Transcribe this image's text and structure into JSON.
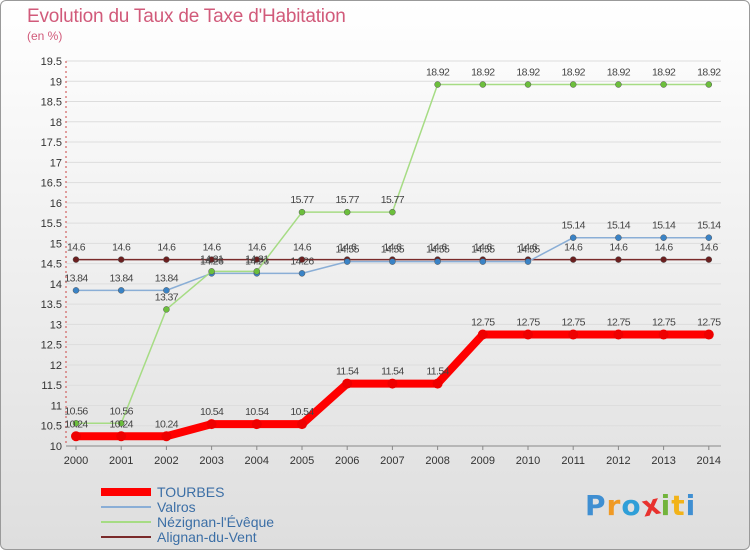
{
  "title": "Evolution du Taux de Taxe d'Habitation",
  "subtitle": "(en %)",
  "colors": {
    "title": "#d15a7a",
    "legend_text": "#3c6fa6",
    "grid": "#dddddd"
  },
  "logo": {
    "text": "Proxiti",
    "colors": [
      "#3f8fd2",
      "#f09a24",
      "#2f9fd8",
      "#e8322e",
      "#72b43c",
      "#f2b319",
      "#3f8fd2"
    ]
  },
  "chart_data": {
    "type": "line",
    "title": "Evolution du Taux de Taxe d'Habitation",
    "subtitle": "(en %)",
    "xlabel": "",
    "ylabel": "",
    "ylim": [
      10,
      19.5
    ],
    "y_ticks": [
      "10",
      "10.5",
      "11",
      "11.5",
      "12",
      "12.5",
      "13",
      "13.5",
      "14",
      "14.5",
      "15",
      "15.5",
      "16",
      "16.5",
      "17",
      "17.5",
      "18",
      "18.5",
      "19",
      "19.5"
    ],
    "x": [
      "2000",
      "2001",
      "2002",
      "2003",
      "2004",
      "2005",
      "2006",
      "2007",
      "2008",
      "2009",
      "2010",
      "2011",
      "2012",
      "2013",
      "2014"
    ],
    "grid": true,
    "legend_position": "bottom-left",
    "series": [
      {
        "name": "Alignan-du-Vent",
        "color": "#7a2a2a",
        "point": "#6b1f1f",
        "stroke": 1.5,
        "values": [
          14.6,
          14.6,
          14.6,
          14.6,
          14.6,
          14.6,
          14.6,
          14.6,
          14.6,
          14.6,
          14.6,
          14.6,
          14.6,
          14.6,
          14.6
        ],
        "labels": [
          "14.6",
          "14.6",
          "14.6",
          "14.6",
          "14.6",
          "14.6",
          "14.6",
          "14.6",
          "14.6",
          "14.6",
          "14.6",
          "14.6",
          "14.6",
          "14.6",
          "14.6"
        ]
      },
      {
        "name": "Valros",
        "color": "#8aaed6",
        "point": "#3a83c6",
        "stroke": 1.5,
        "values": [
          13.84,
          13.84,
          13.84,
          14.26,
          14.26,
          14.26,
          14.55,
          14.55,
          14.55,
          14.55,
          14.55,
          15.14,
          15.14,
          15.14,
          15.14
        ],
        "labels": [
          "13.84",
          "13.84",
          "13.84",
          "14.26",
          "14.26",
          "14.26",
          "14.55",
          "14.55",
          "14.55",
          "14.55",
          "14.55",
          "15.14",
          "15.14",
          "15.14",
          "15.14"
        ]
      },
      {
        "name": "Nézignan-l'Évêque",
        "color": "#a6dc84",
        "point": "#6cbf3c",
        "stroke": 1.5,
        "values": [
          10.56,
          10.56,
          13.37,
          14.31,
          14.31,
          15.77,
          15.77,
          15.77,
          18.92,
          18.92,
          18.92,
          18.92,
          18.92,
          18.92,
          18.92
        ],
        "labels": [
          "10.56",
          "10.56",
          "13.37",
          "14.31",
          "14.31",
          "15.77",
          "15.77",
          "15.77",
          "18.92",
          "18.92",
          "18.92",
          "18.92",
          "18.92",
          "18.92",
          "18.92"
        ]
      },
      {
        "name": "TOURBES",
        "color": "#ff0000",
        "point": "#ee0000",
        "stroke": 8,
        "values": [
          10.24,
          10.24,
          10.24,
          10.54,
          10.54,
          10.54,
          11.54,
          11.54,
          11.54,
          12.75,
          12.75,
          12.75,
          12.75,
          12.75,
          12.75
        ],
        "labels": [
          "10.24",
          "10.24",
          "10.24",
          "10.54",
          "10.54",
          "10.54",
          "11.54",
          "11.54",
          "11.54",
          "12.75",
          "12.75",
          "12.75",
          "12.75",
          "12.75",
          "12.75"
        ]
      }
    ],
    "legend": [
      {
        "name": "TOURBES",
        "color": "#ff0000",
        "stroke": 8
      },
      {
        "name": "Valros",
        "color": "#8aaed6",
        "stroke": 2
      },
      {
        "name": "Nézignan-l'Évêque",
        "color": "#a6dc84",
        "stroke": 2
      },
      {
        "name": "Alignan-du-Vent",
        "color": "#7a2a2a",
        "stroke": 2
      }
    ]
  }
}
